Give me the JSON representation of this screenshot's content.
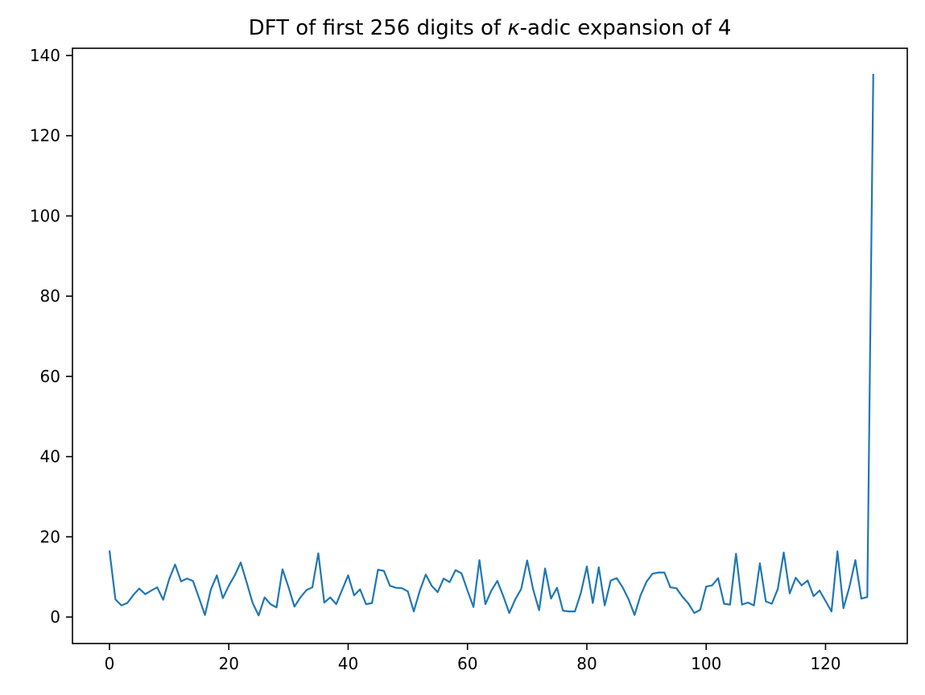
{
  "figure": {
    "title_prefix": "DFT of first 256 digits of ",
    "title_italic": "κ",
    "title_suffix": "-adic expansion of 4",
    "background_color": "#ffffff",
    "spine_color": "#000000",
    "tick_color": "#000000"
  },
  "chart_data": {
    "type": "line",
    "title": "DFT of first 256 digits of κ-adic expansion of 4",
    "xlabel": "",
    "ylabel": "",
    "grid": false,
    "legend": null,
    "series_color": "#1f77b4",
    "line_width": 2.2,
    "x_start": 0,
    "x_step": 1,
    "n_points": 129,
    "x_ticks": [
      0,
      20,
      40,
      60,
      80,
      100,
      120
    ],
    "y_ticks": [
      0,
      20,
      40,
      60,
      80,
      100,
      120,
      140
    ],
    "xlim": [
      -6.2,
      133.7
    ],
    "ylim": [
      -6.6,
      141.8
    ],
    "values": [
      16.6,
      4.4,
      2.9,
      3.5,
      5.5,
      7.1,
      5.7,
      6.6,
      7.4,
      4.3,
      9.4,
      13.1,
      8.9,
      9.6,
      9.0,
      4.8,
      0.5,
      6.9,
      10.4,
      4.7,
      7.8,
      10.4,
      13.6,
      8.6,
      3.5,
      0.4,
      4.9,
      3.2,
      2.4,
      11.9,
      7.5,
      2.6,
      4.9,
      6.7,
      7.4,
      15.9,
      3.6,
      4.9,
      3.2,
      6.8,
      10.4,
      5.4,
      6.9,
      3.2,
      3.5,
      11.8,
      11.5,
      7.8,
      7.3,
      7.2,
      6.4,
      1.4,
      6.5,
      10.6,
      7.8,
      6.2,
      9.6,
      8.7,
      11.7,
      10.9,
      6.6,
      2.5,
      14.2,
      3.2,
      6.6,
      9.0,
      5.2,
      1.0,
      4.4,
      7.0,
      14.1,
      6.9,
      1.7,
      12.1,
      4.6,
      7.3,
      1.6,
      1.4,
      1.4,
      6.0,
      12.6,
      3.5,
      12.4,
      2.9,
      9.1,
      9.7,
      7.4,
      4.4,
      0.5,
      5.4,
      8.8,
      10.8,
      11.1,
      11.1,
      7.4,
      7.2,
      5.1,
      3.4,
      1.0,
      1.8,
      7.6,
      7.9,
      9.7,
      3.3,
      3.1,
      15.8,
      3.1,
      3.6,
      2.9,
      13.4,
      3.9,
      3.3,
      7.0,
      16.1,
      5.9,
      9.8,
      7.9,
      9.1,
      5.2,
      6.6,
      4.0,
      1.4,
      16.4,
      2.2,
      7.5,
      14.2,
      4.6,
      5.0,
      135.4
    ]
  }
}
